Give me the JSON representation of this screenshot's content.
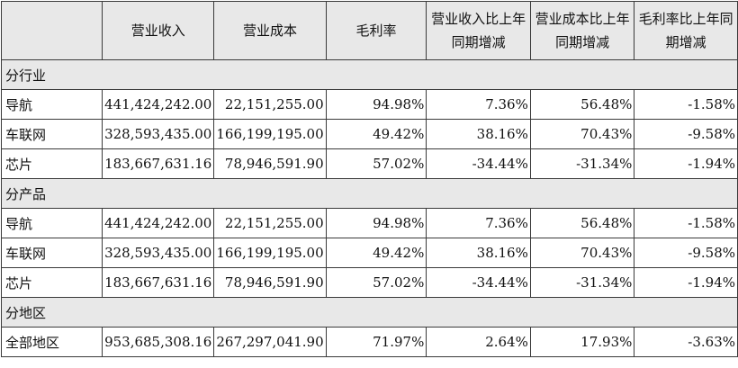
{
  "header": {
    "blank": "",
    "revenue": "营业收入",
    "cost": "营业成本",
    "gross_margin": "毛利率",
    "revenue_yoy_line1": "营业收入比上年",
    "revenue_yoy_line2": "同期增减",
    "cost_yoy_line1": "营业成本比上年",
    "cost_yoy_line2": "同期增减",
    "margin_yoy_line1": "毛利率比上年同",
    "margin_yoy_line2": "期增减"
  },
  "sections": {
    "industry": {
      "title": "分行业",
      "rows": [
        {
          "name": "导航",
          "revenue": "441,424,242.00",
          "cost": "22,151,255.00",
          "margin": "94.98%",
          "rev_yoy": "7.36%",
          "cost_yoy": "56.48%",
          "margin_yoy": "-1.58%"
        },
        {
          "name": "车联网",
          "revenue": "328,593,435.00",
          "cost": "166,199,195.00",
          "margin": "49.42%",
          "rev_yoy": "38.16%",
          "cost_yoy": "70.43%",
          "margin_yoy": "-9.58%"
        },
        {
          "name": "芯片",
          "revenue": "183,667,631.16",
          "cost": "78,946,591.90",
          "margin": "57.02%",
          "rev_yoy": "-34.44%",
          "cost_yoy": "-31.34%",
          "margin_yoy": "-1.94%"
        }
      ]
    },
    "product": {
      "title": "分产品",
      "rows": [
        {
          "name": "导航",
          "revenue": "441,424,242.00",
          "cost": "22,151,255.00",
          "margin": "94.98%",
          "rev_yoy": "7.36%",
          "cost_yoy": "56.48%",
          "margin_yoy": "-1.58%"
        },
        {
          "name": "车联网",
          "revenue": "328,593,435.00",
          "cost": "166,199,195.00",
          "margin": "49.42%",
          "rev_yoy": "38.16%",
          "cost_yoy": "70.43%",
          "margin_yoy": "-9.58%"
        },
        {
          "name": "芯片",
          "revenue": "183,667,631.16",
          "cost": "78,946,591.90",
          "margin": "57.02%",
          "rev_yoy": "-34.44%",
          "cost_yoy": "-31.34%",
          "margin_yoy": "-1.94%"
        }
      ]
    },
    "region": {
      "title": "分地区",
      "rows": [
        {
          "name": "全部地区",
          "revenue": "953,685,308.16",
          "cost": "267,297,041.90",
          "margin": "71.97%",
          "rev_yoy": "2.64%",
          "cost_yoy": "17.93%",
          "margin_yoy": "-3.63%"
        }
      ]
    }
  }
}
